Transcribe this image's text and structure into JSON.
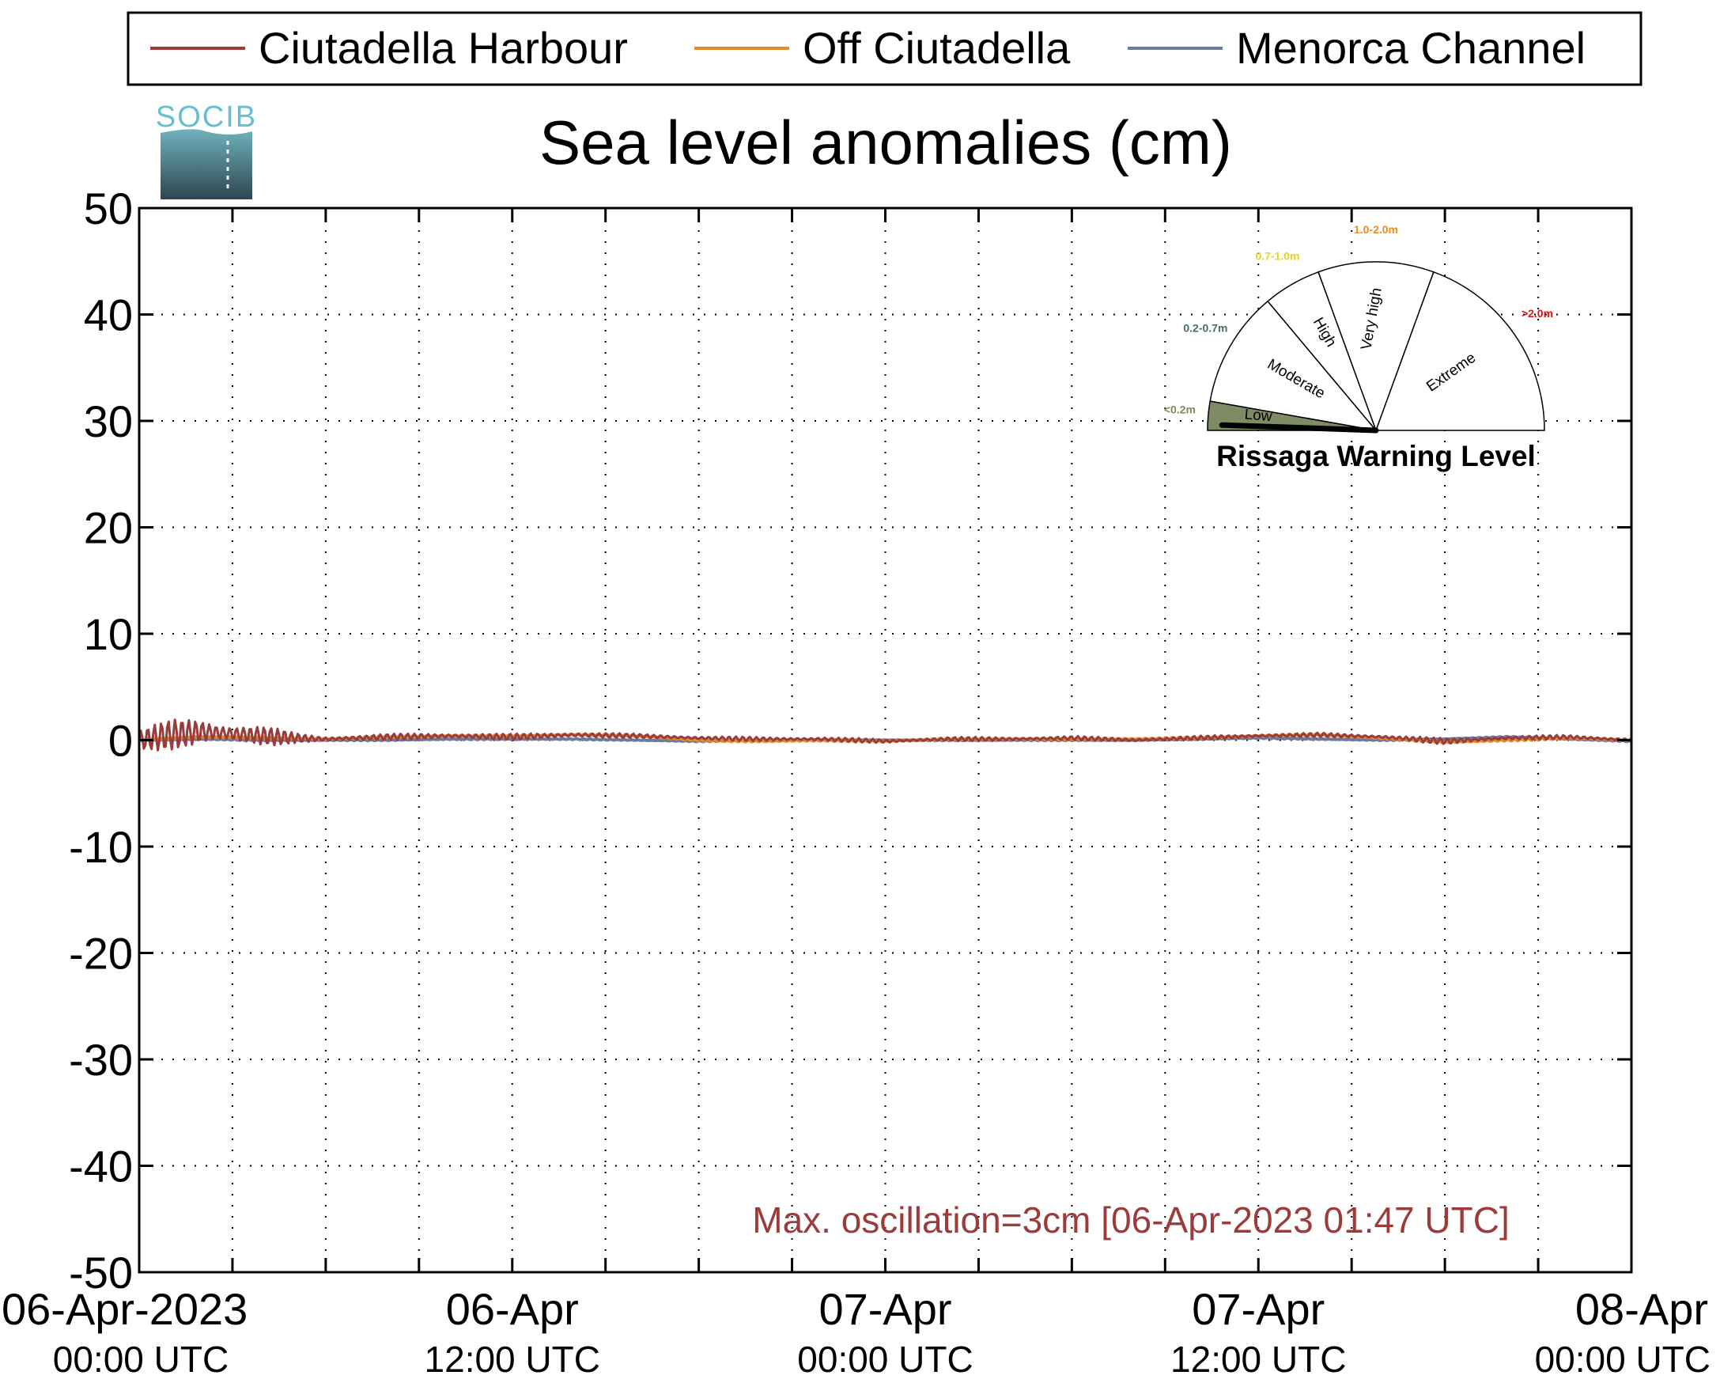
{
  "chart_data": {
    "type": "line",
    "title": "Sea level anomalies (cm)",
    "ylim": [
      -50,
      50
    ],
    "yticks": [
      50,
      40,
      30,
      20,
      10,
      0,
      -10,
      -20,
      -30,
      -40,
      -50
    ],
    "x_range_hours": [
      0,
      48
    ],
    "x_tick_labels": [
      {
        "hours": 0,
        "line1": "06-Apr-2023",
        "line2": "00:00 UTC"
      },
      {
        "hours": 12,
        "line1": "06-Apr",
        "line2": "12:00 UTC"
      },
      {
        "hours": 24,
        "line1": "07-Apr",
        "line2": "00:00 UTC"
      },
      {
        "hours": 36,
        "line1": "07-Apr",
        "line2": "12:00 UTC"
      },
      {
        "hours": 48,
        "line1": "08-Apr",
        "line2": "00:00 UTC"
      }
    ],
    "grid": true,
    "legend_position": "top",
    "series": [
      {
        "name": "Ciutadella Harbour",
        "color": "#9b3b3b",
        "hours": [
          0,
          1,
          2,
          3,
          4,
          5,
          6,
          8,
          10,
          12,
          14,
          16,
          18,
          20,
          22,
          24,
          26,
          28,
          30,
          32,
          34,
          36,
          38,
          40,
          42,
          44,
          46,
          48
        ],
        "values": [
          0,
          0.5,
          0.8,
          0.6,
          0.4,
          0.2,
          0.1,
          0.3,
          0.4,
          0.3,
          0.5,
          0.4,
          0.2,
          0.1,
          0.1,
          -0.1,
          0.1,
          0.1,
          0.2,
          0.0,
          0.2,
          0.4,
          0.5,
          0.3,
          -0.1,
          0.2,
          0.3,
          0.0
        ],
        "oscillation_amplitude": [
          1.2,
          1.4,
          1.5,
          1.3,
          1.0,
          0.5,
          0.3,
          0.3,
          0.3,
          0.3,
          0.3,
          0.2,
          0.2,
          0.2,
          0.2,
          0.2,
          0.2,
          0.2,
          0.2,
          0.2,
          0.2,
          0.2,
          0.2,
          0.2,
          0.3,
          0.2,
          0.2,
          0.2
        ]
      },
      {
        "name": "Off Ciutadella",
        "color": "#e08a2a",
        "hours": [
          0,
          2,
          4,
          6,
          8,
          10,
          12,
          14,
          16,
          18,
          20,
          22,
          24,
          26,
          28,
          30,
          32,
          34,
          36,
          38,
          40,
          42,
          44,
          46,
          48
        ],
        "values": [
          0,
          0.3,
          0.2,
          0.1,
          0.3,
          0.4,
          0.4,
          0.5,
          0.4,
          0.0,
          -0.1,
          0.0,
          -0.1,
          0.1,
          0.1,
          0.1,
          0.1,
          0.2,
          0.4,
          0.5,
          0.2,
          -0.2,
          0.0,
          0.2,
          0.0
        ],
        "oscillation_amplitude": [
          0.1
        ]
      },
      {
        "name": "Menorca Channel",
        "color": "#6b7ba0",
        "hours": [
          0,
          2,
          4,
          6,
          8,
          10,
          12,
          14,
          16,
          18,
          20,
          22,
          24,
          26,
          28,
          30,
          32,
          34,
          36,
          38,
          40,
          42,
          44,
          46,
          48
        ],
        "values": [
          0,
          0.1,
          0.0,
          0.0,
          0.0,
          0.1,
          0.1,
          0.1,
          0.0,
          -0.1,
          0.0,
          0.0,
          0.0,
          0.0,
          0.0,
          0.0,
          0.0,
          0.1,
          0.2,
          0.1,
          0.0,
          0.1,
          0.3,
          0.1,
          -0.1
        ],
        "oscillation_amplitude": [
          0.05
        ]
      }
    ],
    "annotation": "Max. oscillation=3cm [06-Apr-2023 01:47 UTC]",
    "annotation_color": "#9b3b3b"
  },
  "logo": {
    "text": "SOCIB"
  },
  "gauge": {
    "title": "Rissaga Warning Level",
    "current_level": "Low",
    "sectors": [
      {
        "label": "Low",
        "range": "<0.2m",
        "range_color": "#7a8a5c",
        "fill": "#7f8b64",
        "active": true
      },
      {
        "label": "Moderate",
        "range": "0.2-0.7m",
        "range_color": "#4a6a6e",
        "fill": "#ffffff",
        "active": false
      },
      {
        "label": "High",
        "range": "0.7-1.0m",
        "range_color": "#e8d21c",
        "fill": "#ffffff",
        "active": false
      },
      {
        "label": "Very high",
        "range": "1.0-2.0m",
        "range_color": "#f08a1c",
        "fill": "#ffffff",
        "active": false
      },
      {
        "label": "Extreme",
        "range": ">2.0m",
        "range_color": "#e01010",
        "fill": "#ffffff",
        "active": false
      }
    ]
  }
}
